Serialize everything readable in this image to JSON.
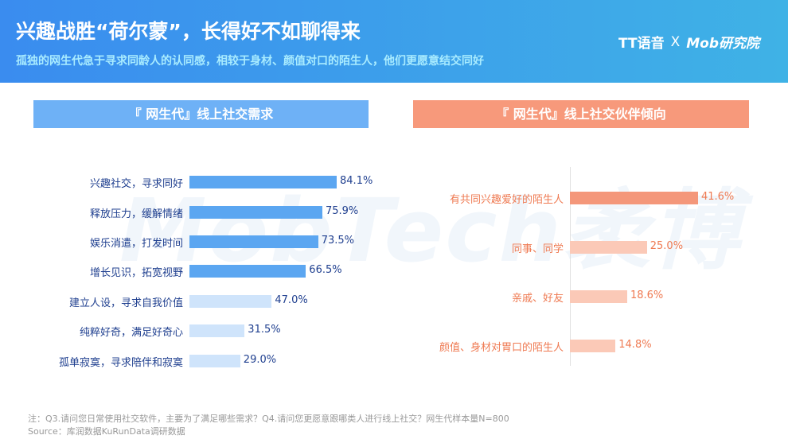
{
  "header": {
    "title": "兴趣战胜“荷尔蒙”，长得好不如聊得来",
    "subtitle": "孤独的网生代急于寻求同龄人的认同感，相较于身材、颜值对口的陌生人，他们更愿意结交同好",
    "logo_tt": "TT语音",
    "logo_x": "X",
    "logo_mob": "Mob研究院"
  },
  "watermark": "MobTech袤博",
  "chart_data": [
    {
      "type": "bar",
      "orientation": "horizontal",
      "title": "『 网生代』线上社交需求",
      "categories": [
        "兴趣社交，寻求同好",
        "释放压力，缓解情绪",
        "娱乐消遣，打发时间",
        "增长见识，拓宽视野",
        "建立人设，寻求自我价值",
        "纯粹好奇，满足好奇心",
        "孤单寂寞，寻求陪伴和寂寞"
      ],
      "values": [
        84.1,
        75.9,
        73.5,
        66.5,
        47.0,
        31.5,
        29.0
      ],
      "labels": [
        "84.1%",
        "75.9%",
        "73.5%",
        "66.5%",
        "47.0%",
        "31.5%",
        "29.0%"
      ],
      "colors": {
        "highlight": "#5ba6f1",
        "normal": "#cfe4fb",
        "header": "#6eb1f6",
        "text": "#1f3f8f"
      },
      "highlight_count": 4
    },
    {
      "type": "bar",
      "orientation": "horizontal",
      "title": "『 网生代』线上社交伙伴倾向",
      "categories": [
        "有共同兴趣爱好的陌生人",
        "同事、同学",
        "亲戚、好友",
        "颜值、身材对胃口的陌生人"
      ],
      "values": [
        41.6,
        25.0,
        18.6,
        14.8
      ],
      "labels": [
        "41.6%",
        "25.0%",
        "18.6%",
        "14.8%"
      ],
      "colors": {
        "highlight": "#f4977a",
        "normal": "#fbc9b7",
        "header": "#f7997b",
        "text": "#ef7a52"
      },
      "highlight_count": 1
    }
  ],
  "footer": {
    "note": "注：Q3.请问您日常使用社交软件，主要为了满足哪些需求？Q4.请问您更愿意跟哪类人进行线上社交？网生代样本量N=800",
    "source": "Source：库润数据KuRunData调研数据"
  }
}
